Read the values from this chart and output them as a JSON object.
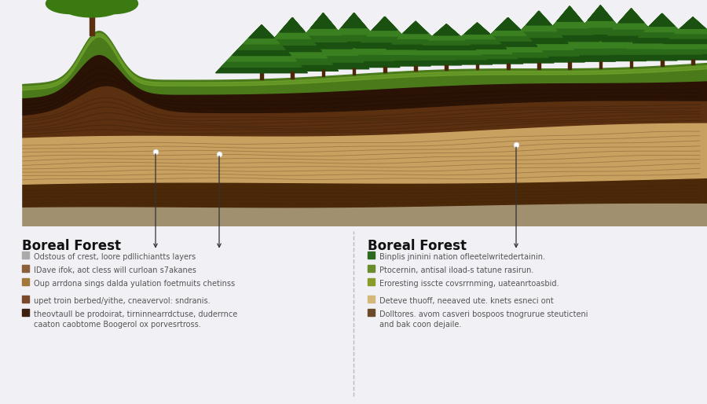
{
  "background_color": "#f0f0f5",
  "left_title": "Boreal Forest",
  "right_title": "Boreal Forest",
  "left_legend": [
    {
      "color": "#aaaaaa",
      "text": "Odstous of crest, loore pdllichiantts layers"
    },
    {
      "color": "#8B5E3C",
      "text": "IDave ifok, aot cless will curloan s7akanes"
    },
    {
      "color": "#A0783A",
      "text": "Oup arrdona sings dalda yulation foetmuits chetinss"
    }
  ],
  "left_legend2": [
    {
      "color": "#7B4A2D",
      "text": "upet troin berbed/yithe, cneavervol: sndranis."
    },
    {
      "color": "#3D2010",
      "text": "theovtaull be prodoirat, tirninnearrdctuse, duderrnce\ncaaton caobtome Boogerol ox porvesrtross."
    }
  ],
  "right_legend": [
    {
      "color": "#2D6A1F",
      "text": "Binplis jninini nation ofleetelwritedertainin."
    },
    {
      "color": "#6B8C2A",
      "text": "Ptocernin, antisal iload-s tatune rasirun."
    },
    {
      "color": "#8B9B2A",
      "text": "Eroresting isscte covsrrnming, uateanrtoasbid."
    }
  ],
  "right_legend2": [
    {
      "color": "#D4B87A",
      "text": "Deteve thuoff, neeaved ute. knets esneci ont"
    },
    {
      "color": "#6B4A2A",
      "text": "Dolltores. avom casveri bospoos tnogrurue steuticteni\nand bak coon dejaile."
    }
  ],
  "soil_colors": {
    "grass": "#4a7a1a",
    "grass_light": "#7ab030",
    "topsoil_dark": "#2a1205",
    "topsoil_mid": "#5a3010",
    "topsoil_light": "#b08040",
    "subsoil_tan": "#c8a060",
    "subsoil_brown": "#7a5020",
    "deep_brown": "#4a2808",
    "gravel": "#787878",
    "gravel_light": "#9a9a9a",
    "clay": "#a09070"
  },
  "tree_colors": {
    "deciduous_trunk": "#5a3010",
    "deciduous_foliage": "#3a7a10",
    "conifer_trunk": "#4a2808",
    "conifer_dark": "#1a5010",
    "conifer_mid": "#2a6a18",
    "conifer_light": "#3a8020"
  }
}
